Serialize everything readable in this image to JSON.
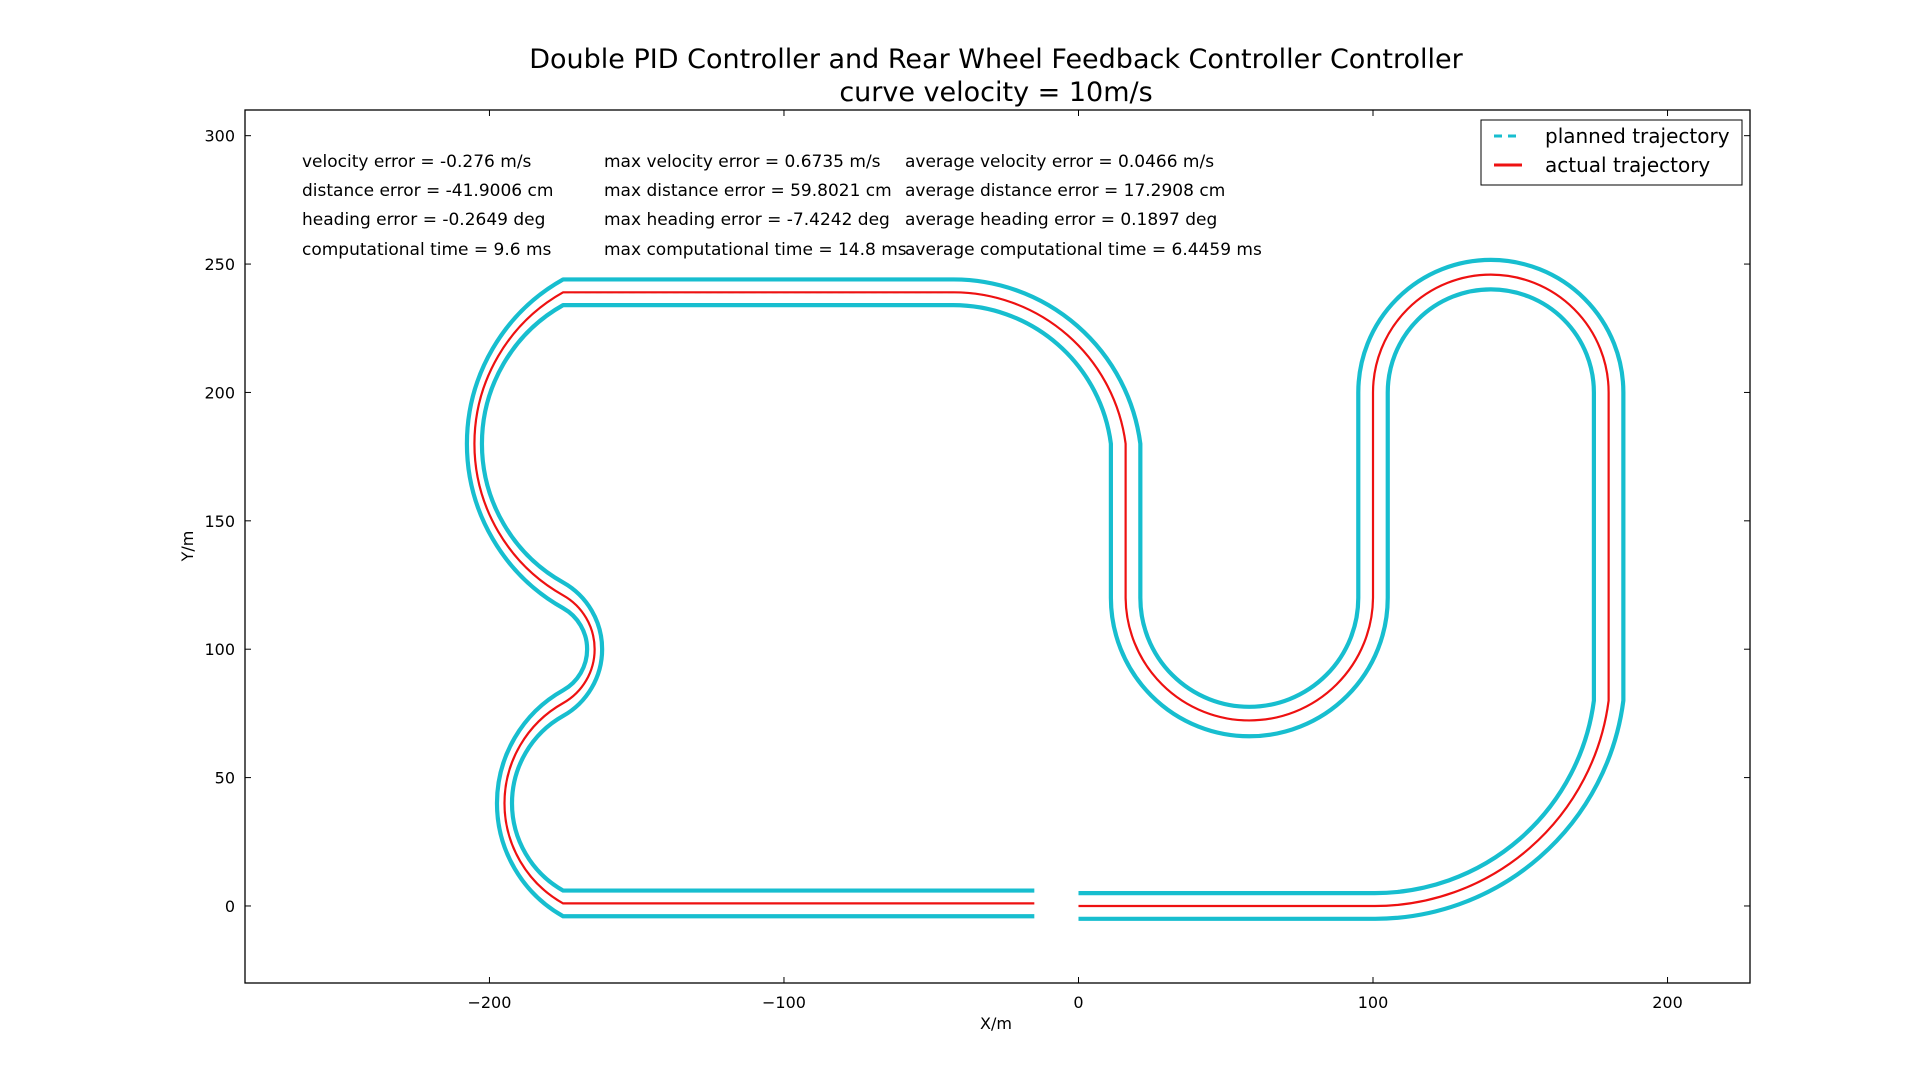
{
  "chart_data": {
    "type": "line",
    "title": "Double PID Controller and Rear Wheel Feedback Controller Controller",
    "subtitle": "curve velocity = 10m/s",
    "xlabel": "X/m",
    "ylabel": "Y/m",
    "xlim": [
      -283,
      228
    ],
    "ylim": [
      -30,
      310
    ],
    "xticks": [
      -200,
      -100,
      0,
      100,
      200
    ],
    "yticks": [
      0,
      50,
      100,
      150,
      200,
      250,
      300
    ],
    "xtick_labels": [
      "−200",
      "−100",
      "0",
      "100",
      "200"
    ],
    "ytick_labels": [
      "0",
      "50",
      "100",
      "150",
      "200",
      "250",
      "300"
    ],
    "grid": false,
    "legend_position": "top-right",
    "legend": [
      {
        "label": "planned trajectory",
        "color": "#17becf",
        "style": "dashed"
      },
      {
        "label": "actual trajectory",
        "color": "#ee1111",
        "style": "solid"
      }
    ],
    "colors": {
      "boundary": "#17becf",
      "planned": "#17becf",
      "actual": "#ee1111"
    },
    "stats": {
      "current": [
        "velocity error = -0.276 m/s",
        "distance error = -41.9006 cm",
        "heading error = -0.2649 deg",
        "computational time = 9.6 ms"
      ],
      "max": [
        "max velocity error = 0.6735 m/s",
        "max distance error = 59.8021 cm",
        "max heading error = -7.4242 deg",
        "max computational time = 14.8 ms"
      ],
      "average": [
        "average velocity error = 0.0466 m/s",
        "average distance error = 17.2908 cm",
        "average heading error = 0.1897 deg",
        "average computational time = 6.4459 ms"
      ]
    },
    "track_offset": 5,
    "track_gap": [
      -15,
      0
    ],
    "series": [
      {
        "name": "planned trajectory",
        "segments": [
          {
            "type": "line",
            "from": [
              0,
              0
            ],
            "to": [
              100,
              0
            ]
          },
          {
            "type": "arc",
            "center": [
              100,
              80
            ],
            "radius": 80,
            "start_deg": -90,
            "end_deg": 0
          },
          {
            "type": "line",
            "from": [
              180,
              80
            ],
            "to": [
              180,
              200
            ]
          },
          {
            "type": "arc",
            "center": [
              140,
              200
            ],
            "radius": 40,
            "start_deg": 0,
            "end_deg": 180
          },
          {
            "type": "line",
            "from": [
              100,
              200
            ],
            "to": [
              100,
              120
            ]
          },
          {
            "type": "arc",
            "center": [
              58,
              120
            ],
            "radius": 42,
            "start_deg": 0,
            "end_deg": -180
          },
          {
            "type": "line",
            "from": [
              16,
              120
            ],
            "to": [
              16,
              180
            ]
          },
          {
            "type": "arc",
            "center": [
              -43,
              180
            ],
            "radius": 59,
            "start_deg": 0,
            "end_deg": 90
          },
          {
            "type": "line",
            "from": [
              -43,
              239
            ],
            "to": [
              -175,
              239
            ]
          },
          {
            "type": "arc",
            "center": [
              -175,
              180
            ],
            "radius": 59,
            "start_deg": 90,
            "end_deg": 270
          },
          {
            "type": "arc",
            "center": [
              -175,
              100
            ],
            "radius": 21,
            "start_deg": 90,
            "end_deg": -90
          },
          {
            "type": "arc",
            "center": [
              -175,
              40
            ],
            "radius": 39,
            "start_deg": 90,
            "end_deg": 270
          },
          {
            "type": "line",
            "from": [
              -175,
              1
            ],
            "to": [
              -15,
              1
            ]
          }
        ]
      },
      {
        "name": "actual trajectory",
        "segments": [
          {
            "type": "line",
            "from": [
              0,
              0
            ],
            "to": [
              100,
              0
            ]
          },
          {
            "type": "arc",
            "center": [
              100,
              80
            ],
            "radius": 80,
            "start_deg": -90,
            "end_deg": 0
          },
          {
            "type": "line",
            "from": [
              180,
              80
            ],
            "to": [
              180,
              200
            ]
          },
          {
            "type": "arc",
            "center": [
              140,
              200
            ],
            "radius": 40,
            "start_deg": 0,
            "end_deg": 180
          },
          {
            "type": "line",
            "from": [
              100,
              200
            ],
            "to": [
              100,
              120
            ]
          },
          {
            "type": "arc",
            "center": [
              58,
              120
            ],
            "radius": 42,
            "start_deg": 0,
            "end_deg": -180
          },
          {
            "type": "line",
            "from": [
              16,
              120
            ],
            "to": [
              16,
              180
            ]
          },
          {
            "type": "arc",
            "center": [
              -43,
              180
            ],
            "radius": 59,
            "start_deg": 0,
            "end_deg": 90
          },
          {
            "type": "line",
            "from": [
              -43,
              239
            ],
            "to": [
              -175,
              239
            ]
          },
          {
            "type": "arc",
            "center": [
              -175,
              180
            ],
            "radius": 59,
            "start_deg": 90,
            "end_deg": 270
          },
          {
            "type": "arc",
            "center": [
              -175,
              100
            ],
            "radius": 21,
            "start_deg": 90,
            "end_deg": -90
          },
          {
            "type": "arc",
            "center": [
              -175,
              40
            ],
            "radius": 39,
            "start_deg": 90,
            "end_deg": 270
          },
          {
            "type": "line",
            "from": [
              -175,
              1
            ],
            "to": [
              -15,
              1
            ]
          }
        ]
      }
    ]
  }
}
